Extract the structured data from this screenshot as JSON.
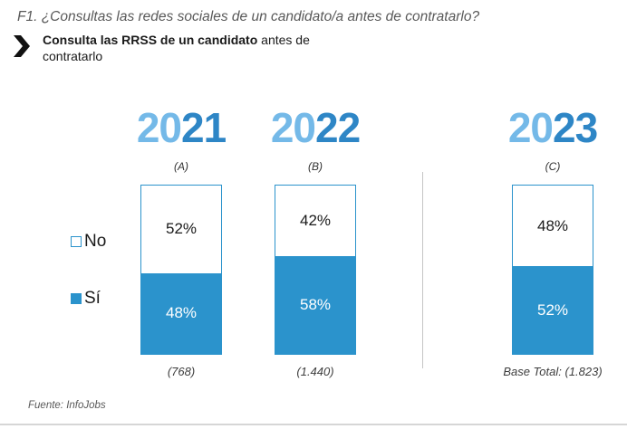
{
  "header": {
    "question_label": "F1. ¿Consultas las redes sociales de un candidato/a antes de contratarlo?",
    "subtitle_bold": "Consulta las RRSS de un candidato",
    "subtitle_rest": " antes de contratarlo"
  },
  "legend": {
    "no_label": "No",
    "si_label": "Sí"
  },
  "columns": [
    {
      "year_prefix": "20",
      "year_suffix": "21",
      "letter": "(A)",
      "no_label": "52%",
      "si_label": "48%",
      "base": "(768)"
    },
    {
      "year_prefix": "20",
      "year_suffix": "22",
      "letter": "(B)",
      "no_label": "42%",
      "si_label": "58%",
      "base": "(1.440)"
    },
    {
      "year_prefix": "20",
      "year_suffix": "23",
      "letter": "(C)",
      "no_label": "48%",
      "si_label": "52%",
      "base": "Base Total: (1.823)"
    }
  ],
  "chart_data": {
    "type": "bar",
    "stacked": true,
    "title": "F1. ¿Consultas las redes sociales de un candidato/a antes de contratarlo?",
    "categories": [
      "2021",
      "2022",
      "2023"
    ],
    "column_letters": [
      "(A)",
      "(B)",
      "(C)"
    ],
    "series": [
      {
        "name": "No",
        "values": [
          52,
          42,
          48
        ]
      },
      {
        "name": "Sí",
        "values": [
          48,
          58,
          52
        ]
      }
    ],
    "bases": [
      "(768)",
      "(1.440)",
      "Base Total: (1.823)"
    ],
    "unit": "%",
    "ylim": [
      0,
      100
    ],
    "grid": false,
    "legend_position": "left"
  },
  "theme": {
    "bar_blue": "#2B93CC",
    "year_light_blue": "#74B9E8",
    "year_dark_blue": "#2E86C6",
    "title_gray": "#595959",
    "divider_gray": "#C6C6C6"
  },
  "footer": {
    "source": "Fuente: InfoJobs"
  }
}
